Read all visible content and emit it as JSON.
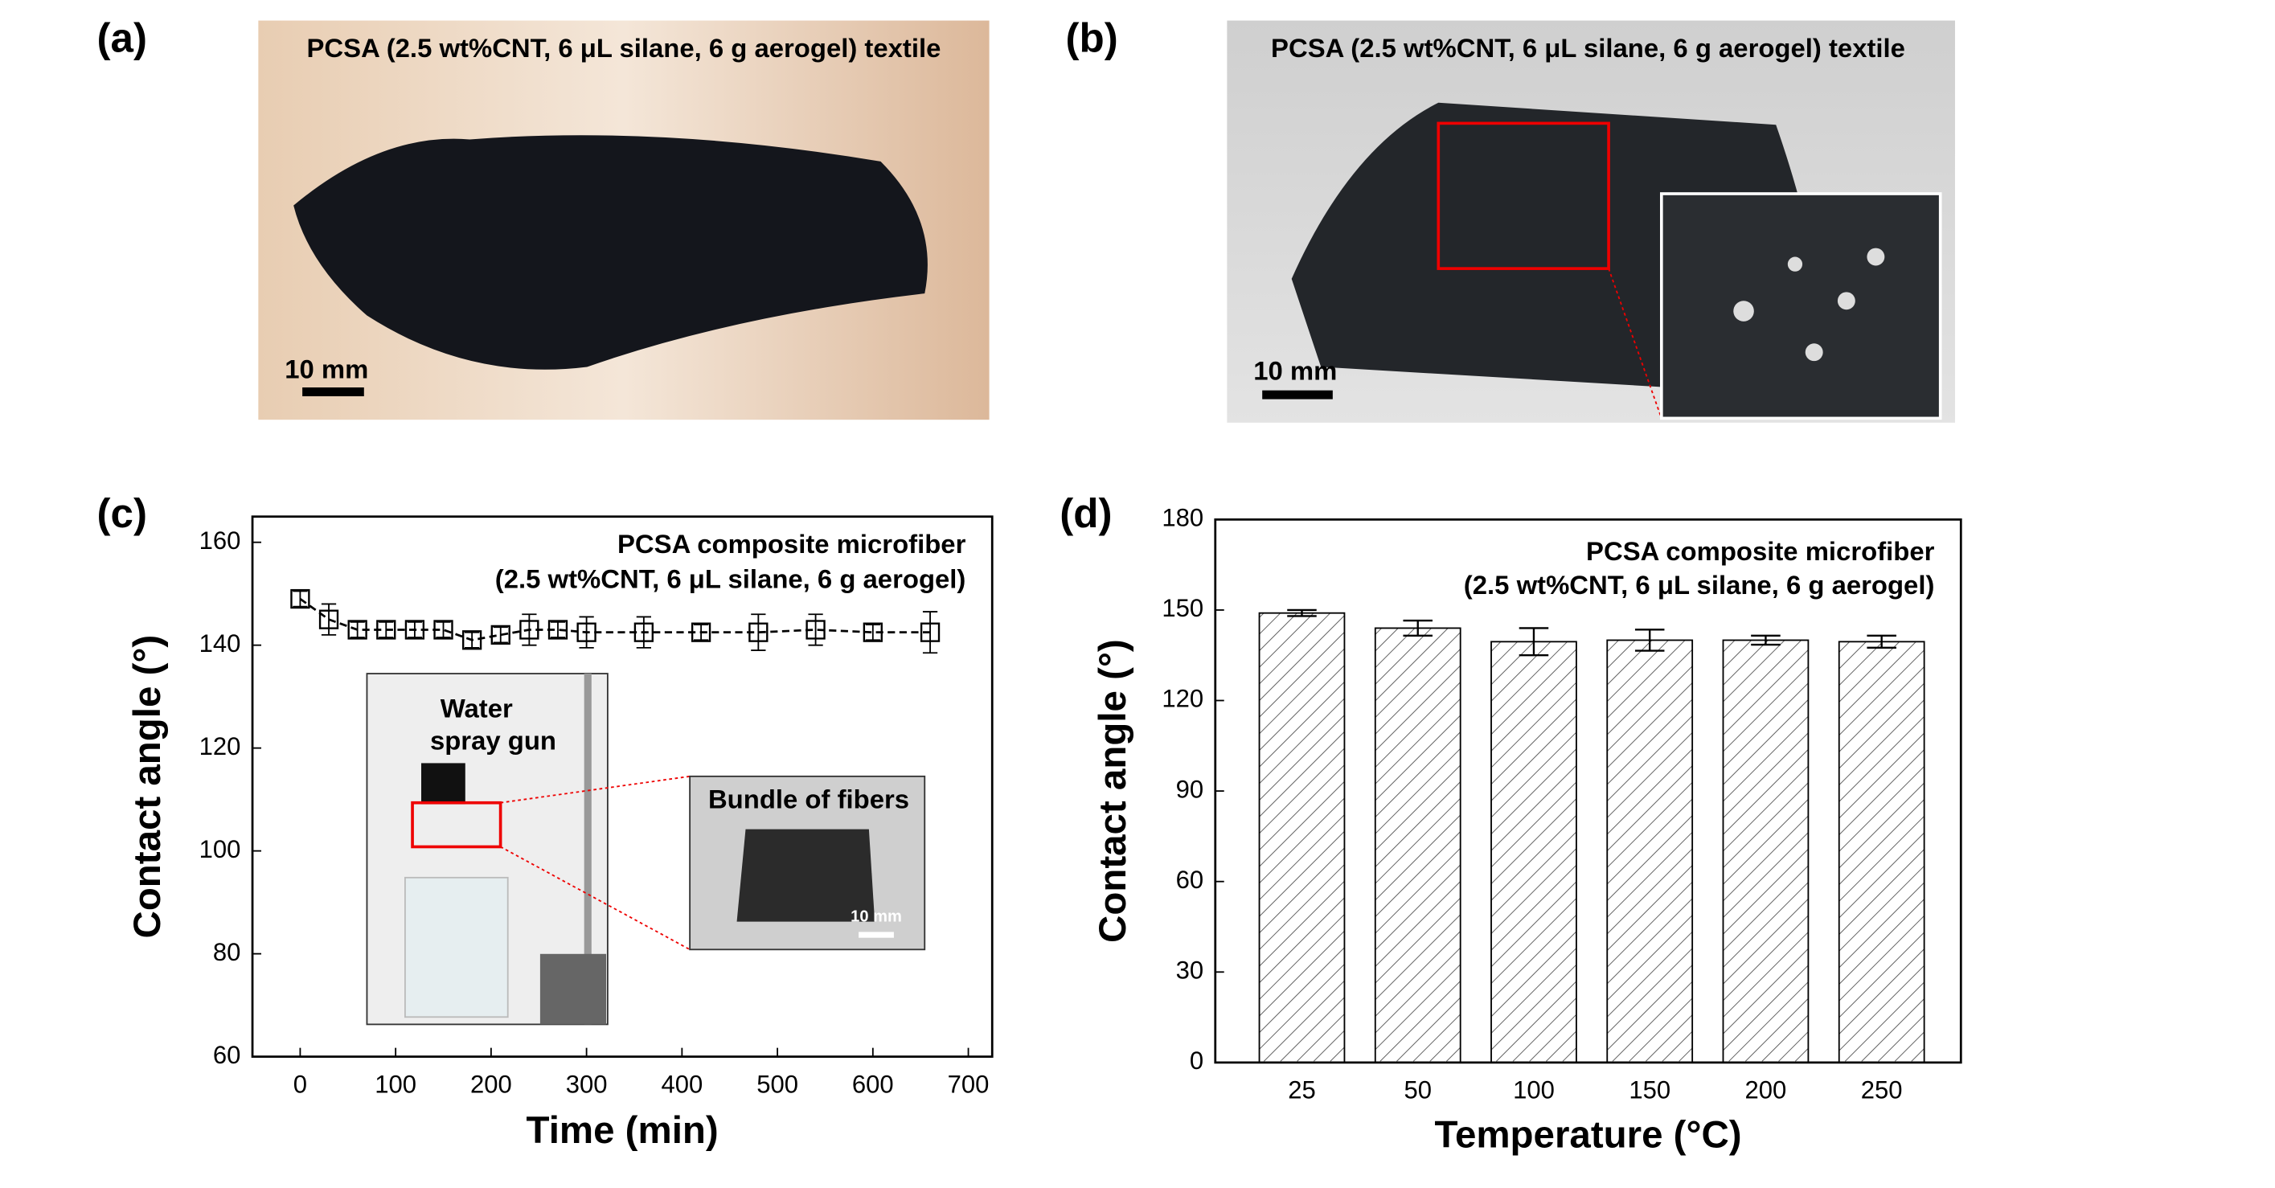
{
  "photos": [
    {
      "label": "(a)",
      "caption": "PCSA (2.5 wt%CNT, 6 μL silane, 6 g aerogel) textile",
      "scale": "10 mm"
    },
    {
      "label": "(b)",
      "caption": "PCSA (2.5 wt%CNT, 6 μL silane, 6 g aerogel) textile",
      "scale": "10 mm"
    }
  ],
  "chart_data": [
    {
      "type": "scatter",
      "label": "(c)",
      "annotations": [
        "PCSA composite microfiber",
        "(2.5 wt%CNT, 6 μL silane, 6 g aerogel)"
      ],
      "inset_texts": [
        "Water",
        "spray gun",
        "Bundle of fibers",
        "10 mm"
      ],
      "x_label": "Time (min)",
      "y_label": "Contact angle (°)",
      "x": [
        0,
        30,
        60,
        90,
        120,
        150,
        180,
        210,
        240,
        270,
        300,
        360,
        420,
        480,
        540,
        600,
        660
      ],
      "values": [
        149,
        145,
        143,
        143,
        143,
        143,
        141,
        142,
        143,
        143,
        142.5,
        142.5,
        142.5,
        142.5,
        143,
        142.5,
        142.5
      ],
      "errors": [
        1.5,
        3,
        1.5,
        1.5,
        1.5,
        1.5,
        1.5,
        1.5,
        3,
        1.5,
        3,
        3,
        1.5,
        3.5,
        3,
        1.5,
        4
      ],
      "color": "#000000",
      "xlim": [
        -50,
        725
      ],
      "xticks": [
        0,
        100,
        200,
        300,
        400,
        500,
        600,
        700
      ],
      "ylim": [
        60,
        165
      ],
      "yticks": [
        60,
        80,
        100,
        120,
        140,
        160
      ]
    },
    {
      "type": "bar",
      "label": "(d)",
      "annotations": [
        "PCSA composite microfiber",
        "(2.5 wt%CNT, 6 μL silane, 6 g aerogel)"
      ],
      "x_label": "Temperature (°C)",
      "y_label": "Contact angle (°)",
      "categories": [
        "25",
        "50",
        "100",
        "150",
        "200",
        "250"
      ],
      "values": [
        149,
        144,
        139.5,
        140,
        140,
        139.5
      ],
      "errors": [
        1,
        2.5,
        4.5,
        3.5,
        1.5,
        2
      ],
      "color": "#000000",
      "ylim": [
        0,
        180
      ],
      "yticks": [
        0,
        30,
        60,
        90,
        120,
        150,
        180
      ]
    }
  ]
}
